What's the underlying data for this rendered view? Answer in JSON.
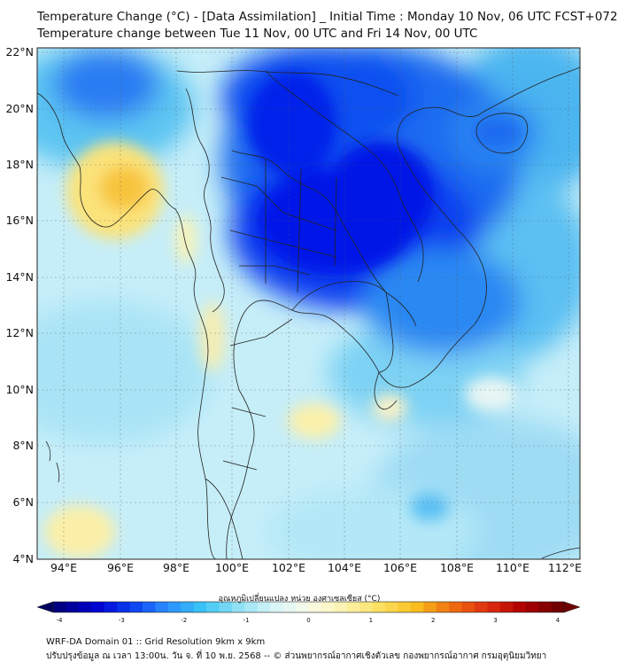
{
  "header": {
    "title_line1": "Temperature Change (°C) - [Data Assimilation] _ Initial Time : Monday 10 Nov, 06 UTC FCST+072",
    "title_line2": "Temperature change between Tue 11 Nov, 00 UTC and Fri 14 Nov, 00 UTC"
  },
  "map": {
    "lat_labels": [
      "22°N",
      "20°N",
      "18°N",
      "16°N",
      "14°N",
      "12°N",
      "10°N",
      "8°N",
      "6°N",
      "4°N"
    ],
    "lon_labels": [
      "94°E",
      "96°E",
      "98°E",
      "100°E",
      "102°E",
      "104°E",
      "106°E",
      "108°E",
      "110°E",
      "112°E"
    ],
    "field": "temperature change",
    "units": "°C"
  },
  "colorbar": {
    "title": "อุณหภูมิเปลี่ยนแปลง หน่วย องศาเซลเซียส (°C)",
    "ticks": [
      "-4",
      "-3",
      "-2",
      "-1",
      "0",
      "1",
      "2",
      "3",
      "4"
    ],
    "colors": [
      "#000080",
      "#0000d0",
      "#0a3cf0",
      "#2a8cff",
      "#39c4f5",
      "#8fe0f5",
      "#d8f4f8",
      "#f8fbe8",
      "#fdf3b0",
      "#fde060",
      "#f8c020",
      "#f07010",
      "#e03010",
      "#b00000",
      "#700000"
    ]
  },
  "footer": {
    "line1": "WRF-DA Domain 01 :: Grid Resolution 9km x 9km",
    "line2": "ปรับปรุงข้อมูล ณ เวลา 13:00น. วัน จ. ที่ 10 พ.ย. 2568 -- © ส่วนพยากรณ์อากาศเชิงตัวเลข กองพยากรณ์อากาศ กรมอุตุนิยมวิทยา"
  }
}
